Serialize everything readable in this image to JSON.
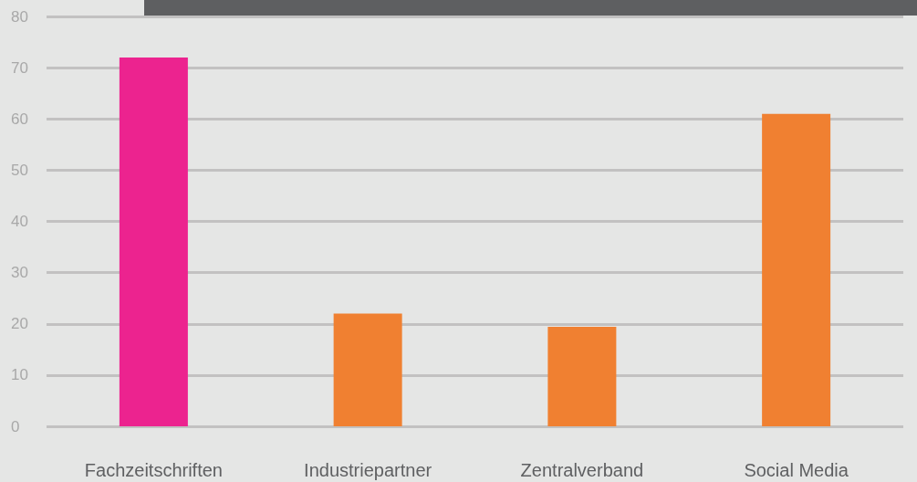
{
  "chart_data": {
    "type": "bar",
    "categories": [
      "Fachzeitschriften",
      "Industriepartner",
      "Zentralverband",
      "Social Media"
    ],
    "values": [
      72,
      22,
      19.4,
      61
    ],
    "colors": [
      "#ec238f",
      "#f08031",
      "#f08031",
      "#f08031"
    ],
    "ylim": [
      0,
      80
    ],
    "yticks": [
      0,
      10,
      20,
      30,
      40,
      50,
      60,
      70,
      80
    ],
    "grid": "y"
  }
}
